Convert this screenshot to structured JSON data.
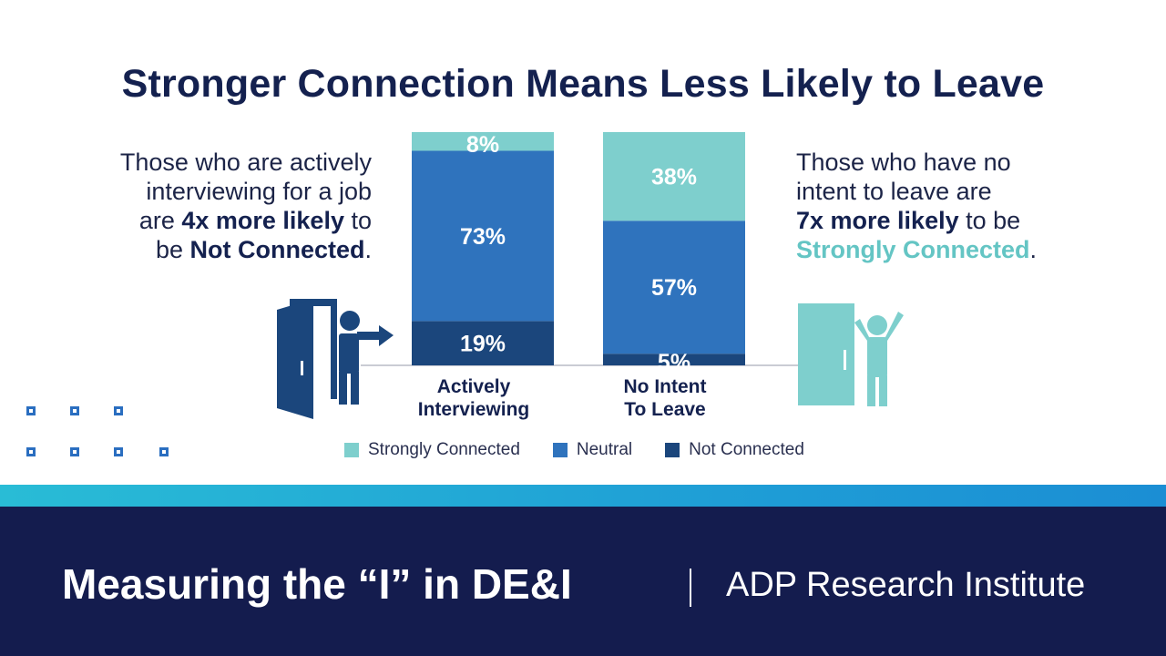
{
  "title": "Stronger Connection Means Less Likely to Leave",
  "left_note": {
    "l1": "Those who are actively",
    "l2": "interviewing for a job",
    "l3a": "are ",
    "l3b": "4x more likely",
    "l3c": " to",
    "l4a": "be ",
    "l4b": "Not Connected",
    "l4c": "."
  },
  "right_note": {
    "l1": "Those who have no",
    "l2": "intent to leave are",
    "l3a": "7x more likely",
    "l3b": " to be",
    "l4a": "Strongly Connected",
    "l4b": "."
  },
  "colors": {
    "strongly_connected": "#7ecfcd",
    "neutral": "#2f73bd",
    "not_connected": "#1b467c",
    "title_navy": "#14214f",
    "teal_text": "#64c5c4",
    "footer_bg": "#141c4e"
  },
  "chart_data": {
    "type": "bar",
    "stacked": true,
    "orientation": "vertical",
    "categories": [
      "Actively\nInterviewing",
      "No Intent\nTo Leave"
    ],
    "category_lines": [
      [
        "Actively",
        "Interviewing"
      ],
      [
        "No Intent",
        "To Leave"
      ]
    ],
    "series": [
      {
        "name": "Not Connected",
        "values": [
          19,
          5
        ],
        "labels": [
          "19%",
          "5%"
        ]
      },
      {
        "name": "Neutral",
        "values": [
          73,
          57
        ],
        "labels": [
          "73%",
          "57%"
        ]
      },
      {
        "name": "Strongly Connected",
        "values": [
          8,
          38
        ],
        "labels": [
          "8%",
          "38%"
        ]
      }
    ],
    "ylim": [
      0,
      100
    ],
    "legend": {
      "position": "bottom",
      "items": [
        "Strongly Connected",
        "Neutral",
        "Not Connected"
      ]
    },
    "grid": false,
    "icons": [
      "person-exiting-door-icon",
      "person-cheering-by-door-icon"
    ]
  },
  "footer": {
    "title": "Measuring the “I” in DE&I",
    "org": "ADP Research Institute"
  }
}
